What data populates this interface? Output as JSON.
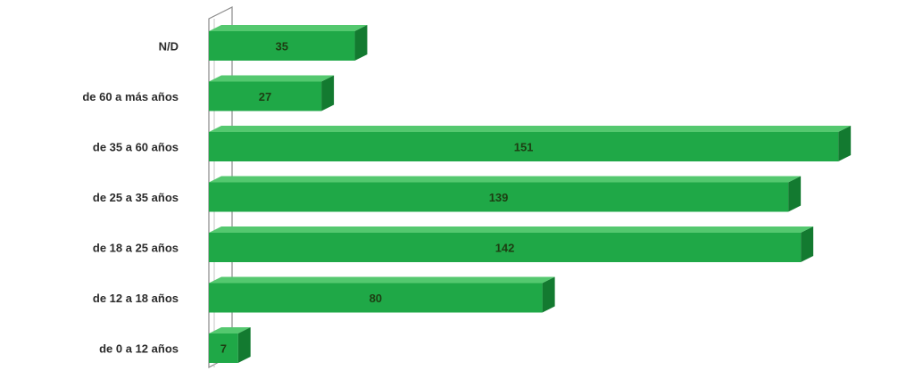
{
  "chart_data": {
    "type": "bar",
    "orientation": "horizontal",
    "style": "3d",
    "categories": [
      "N/D",
      "de 60 a más años",
      "de 35 a 60 años",
      "de 25 a 35 años",
      "de 18 a 25 años",
      "de 12 a 18 años",
      "de 0 a 12 años"
    ],
    "values": [
      35,
      27,
      151,
      139,
      142,
      80,
      7
    ],
    "title": "",
    "xlabel": "",
    "ylabel": "",
    "grid": false,
    "legend": "none",
    "colors": {
      "bar_front": "#1fa847",
      "bar_top": "#54c86f",
      "bar_side": "#137a30",
      "axis": "#8a8a8a"
    }
  }
}
